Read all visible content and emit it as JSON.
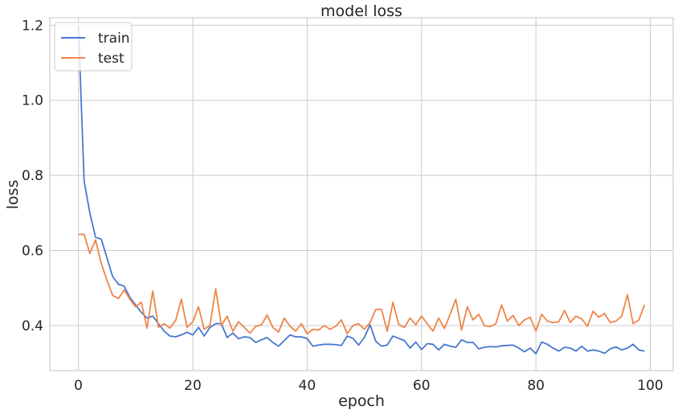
{
  "chart_data": {
    "type": "line",
    "title": "model loss",
    "xlabel": "epoch",
    "ylabel": "loss",
    "xlim": [
      -5,
      104
    ],
    "ylim": [
      0.28,
      1.22
    ],
    "xticks": [
      0,
      20,
      40,
      60,
      80,
      100
    ],
    "yticks": [
      0.4,
      0.6,
      0.8,
      1.0,
      1.2
    ],
    "ytick_labels": [
      "0.4",
      "0.6",
      "0.8",
      "1.0",
      "1.2"
    ],
    "grid": true,
    "legend_position": "top-left",
    "series": [
      {
        "name": "train",
        "color": "#4878d0",
        "x": [
          0,
          1,
          2,
          3,
          4,
          5,
          6,
          7,
          8,
          9,
          10,
          11,
          12,
          13,
          14,
          15,
          16,
          17,
          18,
          19,
          20,
          21,
          22,
          23,
          24,
          25,
          26,
          27,
          28,
          29,
          30,
          31,
          32,
          33,
          34,
          35,
          36,
          37,
          38,
          39,
          40,
          41,
          42,
          43,
          44,
          45,
          46,
          47,
          48,
          49,
          50,
          51,
          52,
          53,
          54,
          55,
          56,
          57,
          58,
          59,
          60,
          61,
          62,
          63,
          64,
          65,
          66,
          67,
          68,
          69,
          70,
          71,
          72,
          73,
          74,
          75,
          76,
          77,
          78,
          79,
          80,
          81,
          82,
          83,
          84,
          85,
          86,
          87,
          88,
          89,
          90,
          91,
          92,
          93,
          94,
          95,
          96,
          97,
          98,
          99
        ],
        "values": [
          1.2,
          0.785,
          0.7,
          0.635,
          0.63,
          0.58,
          0.53,
          0.51,
          0.505,
          0.475,
          0.455,
          0.435,
          0.42,
          0.425,
          0.405,
          0.385,
          0.372,
          0.37,
          0.375,
          0.382,
          0.375,
          0.395,
          0.372,
          0.395,
          0.405,
          0.405,
          0.368,
          0.38,
          0.365,
          0.37,
          0.368,
          0.355,
          0.362,
          0.368,
          0.355,
          0.345,
          0.36,
          0.375,
          0.37,
          0.37,
          0.365,
          0.345,
          0.348,
          0.35,
          0.35,
          0.349,
          0.347,
          0.372,
          0.366,
          0.348,
          0.368,
          0.402,
          0.358,
          0.345,
          0.348,
          0.372,
          0.366,
          0.36,
          0.34,
          0.356,
          0.336,
          0.352,
          0.35,
          0.335,
          0.35,
          0.345,
          0.342,
          0.362,
          0.355,
          0.355,
          0.338,
          0.342,
          0.344,
          0.343,
          0.346,
          0.347,
          0.348,
          0.34,
          0.33,
          0.34,
          0.325,
          0.356,
          0.35,
          0.34,
          0.332,
          0.342,
          0.34,
          0.332,
          0.345,
          0.332,
          0.335,
          0.332,
          0.326,
          0.338,
          0.343,
          0.335,
          0.34,
          0.35,
          0.335,
          0.332
        ]
      },
      {
        "name": "test",
        "color": "#ee854a",
        "x": [
          0,
          1,
          2,
          3,
          4,
          5,
          6,
          7,
          8,
          9,
          10,
          11,
          12,
          13,
          14,
          15,
          16,
          17,
          18,
          19,
          20,
          21,
          22,
          23,
          24,
          25,
          26,
          27,
          28,
          29,
          30,
          31,
          32,
          33,
          34,
          35,
          36,
          37,
          38,
          39,
          40,
          41,
          42,
          43,
          44,
          45,
          46,
          47,
          48,
          49,
          50,
          51,
          52,
          53,
          54,
          55,
          56,
          57,
          58,
          59,
          60,
          61,
          62,
          63,
          64,
          65,
          66,
          67,
          68,
          69,
          70,
          71,
          72,
          73,
          74,
          75,
          76,
          77,
          78,
          79,
          80,
          81,
          82,
          83,
          84,
          85,
          86,
          87,
          88,
          89,
          90,
          91,
          92,
          93,
          94,
          95,
          96,
          97,
          98,
          99
        ],
        "values": [
          0.643,
          0.643,
          0.592,
          0.628,
          0.565,
          0.52,
          0.48,
          0.472,
          0.495,
          0.47,
          0.45,
          0.462,
          0.393,
          0.492,
          0.395,
          0.405,
          0.393,
          0.413,
          0.47,
          0.395,
          0.41,
          0.45,
          0.39,
          0.4,
          0.498,
          0.4,
          0.425,
          0.385,
          0.41,
          0.395,
          0.38,
          0.398,
          0.402,
          0.428,
          0.395,
          0.383,
          0.42,
          0.398,
          0.385,
          0.405,
          0.378,
          0.39,
          0.388,
          0.4,
          0.39,
          0.398,
          0.415,
          0.378,
          0.4,
          0.405,
          0.39,
          0.408,
          0.443,
          0.443,
          0.385,
          0.462,
          0.403,
          0.395,
          0.42,
          0.402,
          0.425,
          0.405,
          0.385,
          0.42,
          0.392,
          0.43,
          0.47,
          0.388,
          0.45,
          0.415,
          0.43,
          0.4,
          0.397,
          0.405,
          0.455,
          0.412,
          0.427,
          0.4,
          0.415,
          0.422,
          0.385,
          0.43,
          0.412,
          0.408,
          0.41,
          0.44,
          0.408,
          0.425,
          0.418,
          0.398,
          0.438,
          0.422,
          0.432,
          0.408,
          0.412,
          0.425,
          0.482,
          0.405,
          0.415,
          0.455
        ]
      }
    ]
  }
}
